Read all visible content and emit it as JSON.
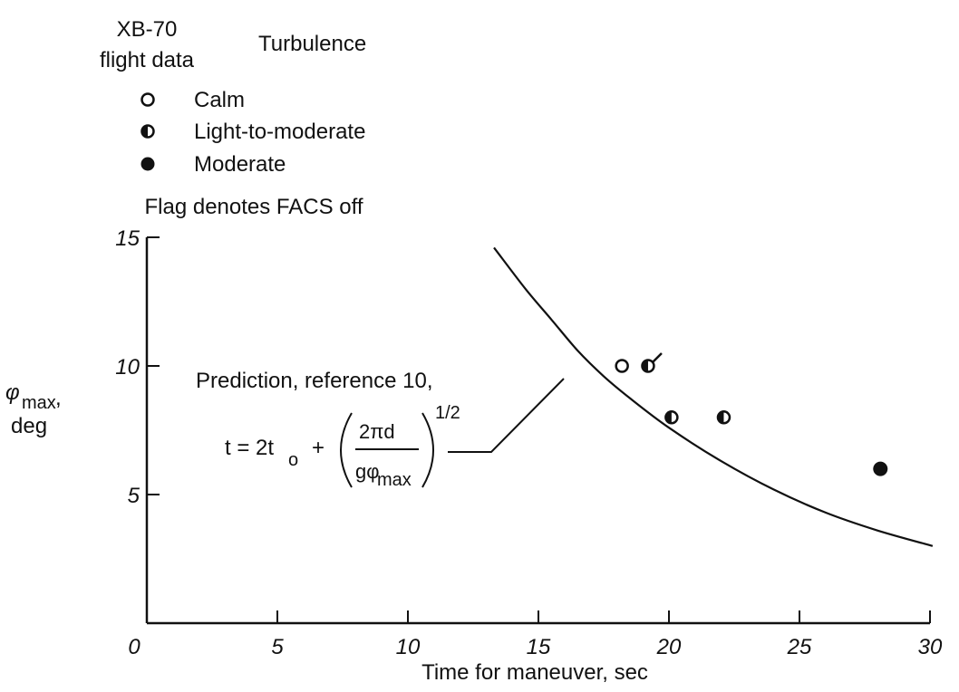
{
  "chart_data": {
    "type": "scatter",
    "xlabel": "Time for maneuver, sec",
    "ylabel_symbol": "φ",
    "ylabel_sub": "max",
    "ylabel_comma": ",",
    "ylabel_unit": "deg",
    "xlim": [
      0,
      30
    ],
    "ylim": [
      0,
      15
    ],
    "x_ticks": [
      0,
      5,
      10,
      15,
      20,
      25,
      30
    ],
    "y_ticks": [
      5,
      10,
      15
    ],
    "grid": false,
    "legend": {
      "placement": "top",
      "header_left_line1": "XB-70",
      "header_left_line2": "flight data",
      "header_right": "Turbulence",
      "entries": [
        {
          "marker": "open",
          "label": "Calm"
        },
        {
          "marker": "half",
          "label": "Light-to-moderate"
        },
        {
          "marker": "filled",
          "label": "Moderate"
        }
      ],
      "note": "Flag denotes FACS off"
    },
    "series": [
      {
        "name": "Calm",
        "marker": "open",
        "points": [
          {
            "x": 18.2,
            "y": 10.0,
            "flag": false
          }
        ]
      },
      {
        "name": "Light-to-moderate",
        "marker": "half",
        "points": [
          {
            "x": 19.2,
            "y": 10.0,
            "flag": true
          },
          {
            "x": 20.1,
            "y": 8.0,
            "flag": false
          },
          {
            "x": 22.1,
            "y": 8.0,
            "flag": false
          }
        ]
      },
      {
        "name": "Moderate",
        "marker": "filled",
        "points": [
          {
            "x": 28.1,
            "y": 6.0,
            "flag": false
          }
        ]
      }
    ],
    "prediction_curve": {
      "points": [
        {
          "x": 13.3,
          "y": 14.6
        },
        {
          "x": 14.5,
          "y": 13.0
        },
        {
          "x": 15.5,
          "y": 11.8
        },
        {
          "x": 16.5,
          "y": 10.6
        },
        {
          "x": 17.5,
          "y": 9.6
        },
        {
          "x": 18.5,
          "y": 8.75
        },
        {
          "x": 20.0,
          "y": 7.6
        },
        {
          "x": 22.0,
          "y": 6.3
        },
        {
          "x": 24.0,
          "y": 5.2
        },
        {
          "x": 26.0,
          "y": 4.3
        },
        {
          "x": 28.0,
          "y": 3.6
        },
        {
          "x": 30.1,
          "y": 3.0
        }
      ],
      "annotation_line1": "Prediction, reference 10,",
      "formula": {
        "lhs": "t = 2t",
        "lhs_sub": "o",
        "plus": "+",
        "numerator": "2πd",
        "denominator": "gφ",
        "denominator_sub": "max",
        "exponent": "1/2"
      }
    }
  }
}
